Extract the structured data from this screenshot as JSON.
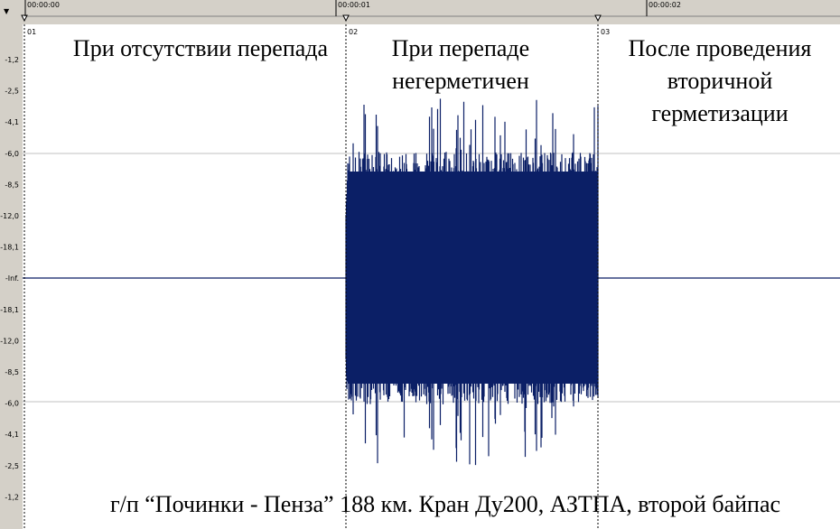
{
  "ruler": {
    "times": [
      "00:00:00",
      "00:00:01",
      "00:00:02"
    ]
  },
  "markers": [
    "01",
    "02",
    "03"
  ],
  "y_axis": [
    "-1,2",
    "-2,5",
    "-4,1",
    "-6,0",
    "-8,5",
    "-12,0",
    "-18,1",
    "-Inf.",
    "-18,1",
    "-12,0",
    "-8,5",
    "-6,0",
    "-4,1",
    "-2,5",
    "-1,2"
  ],
  "annotations": [
    [
      "При отсутствии перепада"
    ],
    [
      "При перепаде",
      "негерметичен"
    ],
    [
      "После проведения",
      "вторичной",
      "герметизации"
    ]
  ],
  "caption": "г/п “Починки - Пенза”  188 км. Кран Ду200, АЗТПА, второй байпас"
}
